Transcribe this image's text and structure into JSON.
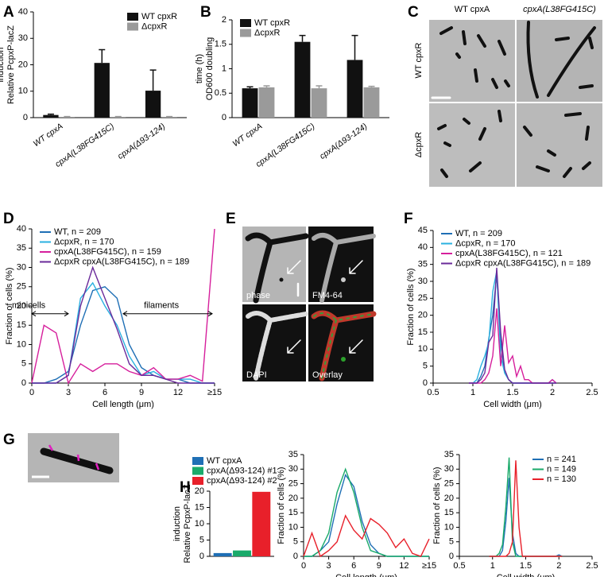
{
  "panels": [
    "A",
    "B",
    "C",
    "D",
    "E",
    "F",
    "G",
    "H"
  ],
  "micrographs": {
    "C": {
      "columns": [
        "WT cpxA",
        "cpxA(L38FG415C)"
      ],
      "rows": [
        "WT cpxR",
        "ΔcpxR"
      ]
    },
    "E": [
      "phase",
      "FM4-64",
      "DAPI",
      "Overlay"
    ]
  },
  "chart_data": [
    {
      "type": "bar",
      "ylabel": [
        "Relative PcpxP-lacZ",
        "induction"
      ],
      "categories": [
        "WT cpxA",
        "cpxA(L38FG415C)",
        "cpxA(Δ93-124)"
      ],
      "series": [
        {
          "name": "WT cpxR",
          "color": "#111111",
          "values": [
            1,
            20.7,
            10.2
          ],
          "errors": [
            0.3,
            5,
            7.8
          ]
        },
        {
          "name": "ΔcpxR",
          "color": "#9a9a9a",
          "values": [
            0.3,
            0.3,
            0.3
          ],
          "errors": [
            0.1,
            0.1,
            0.1
          ]
        }
      ],
      "ylim": [
        0,
        40
      ],
      "yticks": [
        0,
        10,
        20,
        30,
        40
      ],
      "legend": "upper right"
    },
    {
      "type": "bar",
      "ylabel": [
        "OD600 doubling",
        "time (h)"
      ],
      "categories": [
        "WT cpxA",
        "cpxA(L38FG415C)",
        "cpxA(Δ93-124)"
      ],
      "series": [
        {
          "name": "WT cpxR",
          "color": "#111111",
          "values": [
            0.6,
            1.55,
            1.18
          ],
          "errors": [
            0.03,
            0.13,
            0.5
          ]
        },
        {
          "name": "ΔcpxR",
          "color": "#9a9a9a",
          "values": [
            0.62,
            0.6,
            0.62
          ],
          "errors": [
            0.03,
            0.05,
            0.02
          ]
        }
      ],
      "ylim": [
        0,
        2
      ],
      "yticks": [
        0,
        0.5,
        1,
        1.5,
        2
      ],
      "legend": "upper left"
    },
    {
      "type": "line",
      "xlabel": "Cell length (μm)",
      "ylabel": [
        "Fraction of cells (%)"
      ],
      "annotations": [
        "minicells",
        "filaments"
      ],
      "x": [
        0,
        1,
        2,
        3,
        4,
        5,
        6,
        7,
        8,
        9,
        10,
        11,
        12,
        13,
        14,
        15
      ],
      "series": [
        {
          "name": "WT, n = 209",
          "color": "#1f6fb5",
          "values": [
            0,
            0,
            1,
            3,
            15,
            24,
            25,
            22,
            10,
            4,
            2,
            1,
            1,
            0,
            0,
            0
          ]
        },
        {
          "name": "ΔcpxR, n = 170",
          "color": "#2ab0e0",
          "values": [
            0,
            0,
            0,
            2,
            22,
            26,
            20,
            15,
            7,
            2,
            3,
            1,
            1,
            1,
            0,
            0
          ]
        },
        {
          "name": "cpxA(L38FG415C), n = 159",
          "color": "#d61f9c",
          "values": [
            0,
            15,
            13,
            0,
            5,
            3,
            5,
            5,
            3,
            2,
            4,
            1,
            1,
            2,
            0.5,
            40
          ]
        },
        {
          "name": "ΔcpxR cpxA(L38FG415C), n = 189",
          "color": "#6a2a9a",
          "values": [
            0,
            0,
            0,
            2,
            20,
            30,
            22,
            14,
            5,
            2,
            2,
            1,
            0,
            0,
            0,
            0
          ]
        }
      ],
      "xlim": [
        0,
        15
      ],
      "xticks": [
        0,
        3,
        6,
        9,
        12,
        {
          "value": 15,
          "label": "≥15"
        }
      ],
      "ylim": [
        0,
        40
      ],
      "yticks": [
        0,
        5,
        10,
        15,
        20,
        25,
        30,
        35,
        40
      ],
      "legend": "upper left"
    },
    {
      "type": "line",
      "xlabel": "Cell width (μm)",
      "ylabel": [
        "Fraction of cells (%)"
      ],
      "x": [
        0.95,
        1,
        1.05,
        1.1,
        1.15,
        1.2,
        1.25,
        1.3,
        1.35,
        1.4,
        1.45,
        1.5,
        1.55,
        1.6,
        1.65,
        1.7,
        1.75,
        1.8,
        1.85,
        1.9,
        1.95,
        2,
        2.05
      ],
      "series": [
        {
          "name": "WT, n = 209",
          "color": "#1f6fb5",
          "values": [
            0,
            0,
            0,
            2,
            5,
            13,
            20,
            32,
            12,
            3,
            1,
            0,
            0,
            0,
            0,
            0,
            0,
            0,
            0,
            0,
            0,
            0,
            0
          ]
        },
        {
          "name": "ΔcpxR, n = 170",
          "color": "#2ab0e0",
          "values": [
            0,
            0,
            1,
            5,
            8,
            12,
            27,
            33,
            8,
            3,
            1,
            0,
            0,
            0,
            0,
            0,
            0,
            0,
            0,
            0,
            0,
            1,
            0
          ]
        },
        {
          "name": "cpxA(L38FG415C), n = 121",
          "color": "#d61f9c",
          "values": [
            0,
            0,
            0,
            0,
            1,
            3,
            8,
            22,
            5,
            17,
            6,
            8,
            2,
            5,
            1,
            1,
            0,
            0,
            0,
            0,
            0,
            1,
            0
          ]
        },
        {
          "name": "ΔcpxR cpxA(L38FG415C), n = 189",
          "color": "#6a2a9a",
          "values": [
            0,
            0,
            0,
            1,
            3,
            12,
            14,
            34,
            15,
            4,
            1,
            0,
            0,
            0,
            0,
            0,
            0,
            0,
            0,
            0,
            0,
            0,
            0
          ]
        }
      ],
      "xlim": [
        0.5,
        2.5
      ],
      "xticks": [
        0.5,
        1,
        1.5,
        2,
        2.5
      ],
      "ylim": [
        0,
        45
      ],
      "yticks": [
        0,
        5,
        10,
        15,
        20,
        25,
        30,
        35,
        40,
        45
      ],
      "legend": "upper left"
    },
    {
      "type": "bar",
      "ylabel": [
        "Relative PcpxP-lacZ",
        "induction"
      ],
      "categories": [
        null
      ],
      "series": [
        {
          "name": "WT cpxA",
          "color": "#1f6fb5",
          "values": [
            1
          ]
        },
        {
          "name": "cpxA(Δ93-124) #1",
          "color": "#1aaa6a",
          "values": [
            1.8
          ]
        },
        {
          "name": "cpxA(Δ93-124) #2",
          "color": "#e8202a",
          "values": [
            19.8
          ]
        }
      ],
      "ylim": [
        0,
        20
      ],
      "yticks": [
        0,
        5,
        10,
        15,
        20
      ],
      "legend": "top"
    },
    {
      "type": "line",
      "xlabel": "Cell length (μm)",
      "ylabel": [
        "Fraction of cells (%)"
      ],
      "x": [
        0,
        1,
        2,
        3,
        4,
        5,
        6,
        7,
        8,
        9,
        10,
        11,
        12,
        13,
        14,
        15
      ],
      "series": [
        {
          "color": "#1f6fb5",
          "values": [
            0,
            0,
            2,
            5,
            18,
            28,
            24,
            12,
            4,
            1,
            0,
            0,
            0,
            0,
            0,
            0
          ]
        },
        {
          "color": "#1aaa6a",
          "values": [
            0,
            0,
            2,
            8,
            22,
            30,
            22,
            10,
            2,
            1,
            0,
            0,
            0,
            0,
            0,
            0
          ]
        },
        {
          "color": "#e8202a",
          "values": [
            0,
            8,
            0,
            2,
            5,
            14,
            9,
            6,
            13,
            11,
            8,
            3,
            6,
            1,
            0,
            6
          ]
        }
      ],
      "xlim": [
        0,
        15
      ],
      "xticks": [
        0,
        3,
        6,
        9,
        12,
        {
          "value": 15,
          "label": "≥15"
        }
      ],
      "ylim": [
        0,
        35
      ],
      "yticks": [
        0,
        5,
        10,
        15,
        20,
        25,
        30,
        35
      ]
    },
    {
      "type": "line",
      "xlabel": "Cell width (μm)",
      "ylabel": [
        "Fraction of cells (%)"
      ],
      "x": [
        0.95,
        1,
        1.05,
        1.1,
        1.15,
        1.2,
        1.25,
        1.3,
        1.35,
        1.4,
        1.45,
        1.5,
        1.55,
        1.6,
        1.65,
        1.7,
        1.75,
        1.8,
        1.85,
        1.9,
        1.95,
        2,
        2.05
      ],
      "series": [
        {
          "name": "n = 241",
          "color": "#1f6fb5",
          "values": [
            0,
            0,
            0,
            0,
            2,
            12,
            27,
            8,
            1,
            0,
            0,
            0,
            0,
            0,
            0,
            0,
            0,
            0,
            0,
            0,
            0,
            0.5,
            0
          ]
        },
        {
          "name": "n = 149",
          "color": "#1aaa6a",
          "values": [
            0,
            0,
            0,
            1,
            4,
            17,
            34,
            5,
            0,
            0,
            0,
            0,
            0,
            0,
            0,
            0,
            0,
            0,
            0,
            0,
            0,
            0,
            0
          ]
        },
        {
          "name": "n = 130",
          "color": "#e8202a",
          "values": [
            0,
            0,
            0,
            0,
            0,
            0,
            1,
            5,
            33,
            10,
            0,
            0,
            0,
            0,
            0,
            0,
            0,
            0,
            0,
            0,
            0,
            0,
            0
          ]
        }
      ],
      "xlim": [
        0.5,
        2.5
      ],
      "xticks": [
        0.5,
        1,
        1.5,
        2,
        2.5
      ],
      "ylim": [
        0,
        35
      ],
      "yticks": [
        0,
        5,
        10,
        15,
        20,
        25,
        30,
        35
      ],
      "legend": "upper right"
    }
  ]
}
